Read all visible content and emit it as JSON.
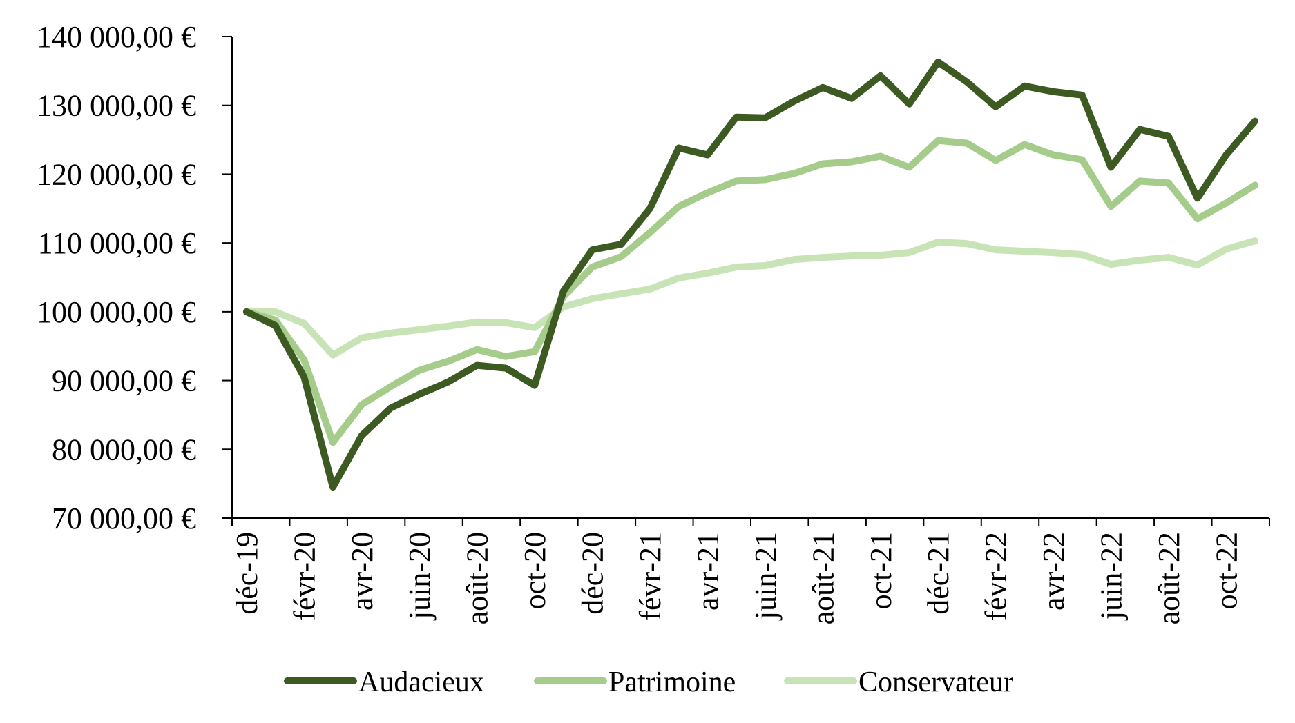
{
  "chart_data": {
    "type": "line",
    "title": "",
    "xlabel": "",
    "ylabel": "",
    "ylim": [
      70000,
      140000
    ],
    "y_ticks": [
      {
        "value": 140000,
        "label": "140 000,00 €"
      },
      {
        "value": 130000,
        "label": "130 000,00 €"
      },
      {
        "value": 120000,
        "label": "120 000,00 €"
      },
      {
        "value": 110000,
        "label": "110 000,00 €"
      },
      {
        "value": 100000,
        "label": "100 000,00 €"
      },
      {
        "value": 90000,
        "label": "90 000,00 €"
      },
      {
        "value": 80000,
        "label": "80 000,00 €"
      },
      {
        "value": 70000,
        "label": "70 000,00 €"
      }
    ],
    "x": [
      "déc-19",
      "janv-20",
      "févr-20",
      "mars-20",
      "avr-20",
      "mai-20",
      "juin-20",
      "juil-20",
      "août-20",
      "sept-20",
      "oct-20",
      "nov-20",
      "déc-20",
      "janv-21",
      "févr-21",
      "mars-21",
      "avr-21",
      "mai-21",
      "juin-21",
      "juil-21",
      "août-21",
      "sept-21",
      "oct-21",
      "nov-21",
      "déc-21",
      "janv-22",
      "févr-22",
      "mars-22",
      "avr-22",
      "mai-22",
      "juin-22",
      "juil-22",
      "août-22",
      "sept-22",
      "oct-22",
      "nov-22"
    ],
    "x_tick_labels": [
      "déc-19",
      "févr-20",
      "avr-20",
      "juin-20",
      "août-20",
      "oct-20",
      "déc-20",
      "févr-21",
      "avr-21",
      "juin-21",
      "août-21",
      "oct-21",
      "déc-21",
      "févr-22",
      "avr-22",
      "juin-22",
      "août-22",
      "oct-22"
    ],
    "legend_position": "bottom",
    "grid": false,
    "series": [
      {
        "name": "Audacieux",
        "color": "#3d5a23",
        "values": [
          100000,
          98000,
          90500,
          74500,
          82000,
          86000,
          88000,
          89800,
          92200,
          91800,
          89300,
          103000,
          109000,
          109800,
          115000,
          123800,
          122800,
          128300,
          128200,
          130600,
          132600,
          131000,
          134300,
          130200,
          136300,
          133400,
          129800,
          132800,
          132000,
          131500,
          121000,
          126500,
          125500,
          116500,
          122800,
          127700
        ]
      },
      {
        "name": "Patrimoine",
        "color": "#a5cc8a",
        "values": [
          100000,
          98800,
          93000,
          81000,
          86500,
          89100,
          91500,
          92800,
          94500,
          93500,
          94200,
          102200,
          106500,
          108000,
          111500,
          115300,
          117300,
          119000,
          119200,
          120100,
          121500,
          121800,
          122600,
          121000,
          124900,
          124500,
          122000,
          124300,
          122800,
          122100,
          115300,
          119000,
          118700,
          113500,
          115800,
          118400
        ]
      },
      {
        "name": "Conservateur",
        "color": "#c8e3b5",
        "values": [
          100000,
          100000,
          98300,
          93700,
          96200,
          96900,
          97400,
          97900,
          98500,
          98400,
          97700,
          100700,
          101900,
          102600,
          103300,
          104900,
          105600,
          106500,
          106700,
          107600,
          107900,
          108100,
          108200,
          108600,
          110100,
          109900,
          109000,
          108800,
          108600,
          108300,
          106900,
          107500,
          107900,
          106800,
          109100,
          110300
        ]
      }
    ]
  }
}
